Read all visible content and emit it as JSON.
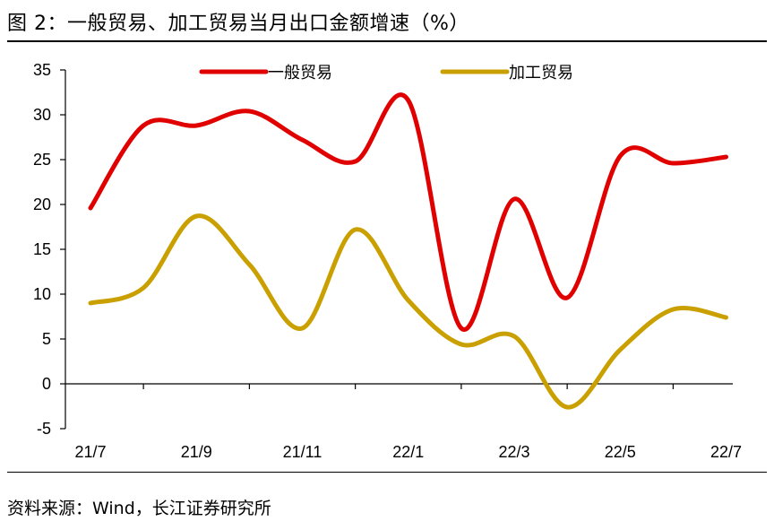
{
  "title": "图 2：一般贸易、加工贸易当月出口金额增速（%）",
  "source": "资料来源：Wind，长江证券研究所",
  "chart_data": {
    "type": "line",
    "title": "一般贸易、加工贸易当月出口金额增速（%）",
    "x": [
      "21/7",
      "21/8",
      "21/9",
      "21/10",
      "21/11",
      "21/12",
      "22/1",
      "22/2",
      "22/3",
      "22/4",
      "22/5",
      "22/6",
      "22/7"
    ],
    "xtick_labels": [
      "21/7",
      "21/9",
      "21/11",
      "22/1",
      "22/3",
      "22/5",
      "22/7"
    ],
    "ylim": [
      -5,
      35
    ],
    "yticks": [
      -5,
      0,
      5,
      10,
      15,
      20,
      25,
      30,
      35
    ],
    "legend_position": "top",
    "series": [
      {
        "name": "一般贸易",
        "color": "#e00000",
        "values": [
          19.6,
          28.8,
          28.8,
          30.4,
          27.2,
          24.8,
          31.6,
          6.2,
          20.6,
          9.6,
          25.4,
          24.6,
          25.3
        ]
      },
      {
        "name": "加工贸易",
        "color": "#c9a000",
        "values": [
          9.0,
          10.7,
          18.7,
          13.3,
          6.2,
          17.2,
          9.3,
          4.4,
          5.3,
          -2.6,
          3.8,
          8.3,
          7.4
        ]
      }
    ]
  }
}
